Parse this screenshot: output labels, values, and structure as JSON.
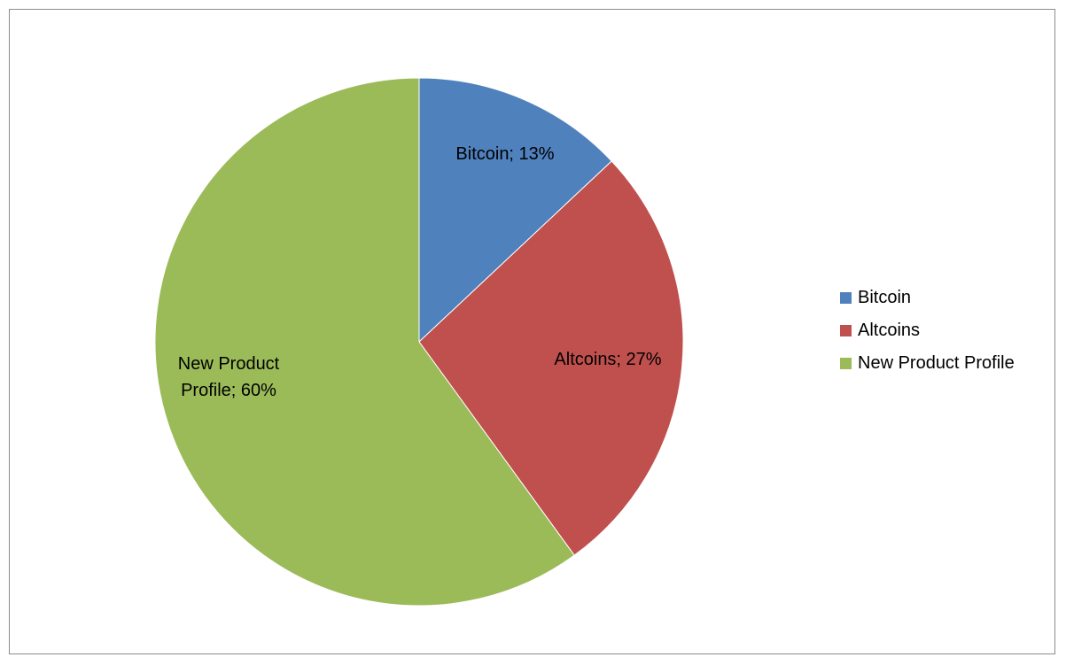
{
  "chart_data": {
    "type": "pie",
    "slices": [
      {
        "name": "Bitcoin",
        "value": 13,
        "label": "Bitcoin; 13%",
        "color": "#4f81bd"
      },
      {
        "name": "Altcoins",
        "value": 27,
        "label": "Altcoins; 27%",
        "color": "#c0504d"
      },
      {
        "name": "New Product Profile",
        "value": 60,
        "label": "New Product Profile; 60%",
        "label_lines": [
          "New Product",
          "Profile; 60%"
        ],
        "color": "#9bbb59"
      }
    ],
    "legend_position": "right",
    "legend": [
      "Bitcoin",
      "Altcoins",
      "New Product Profile"
    ]
  }
}
